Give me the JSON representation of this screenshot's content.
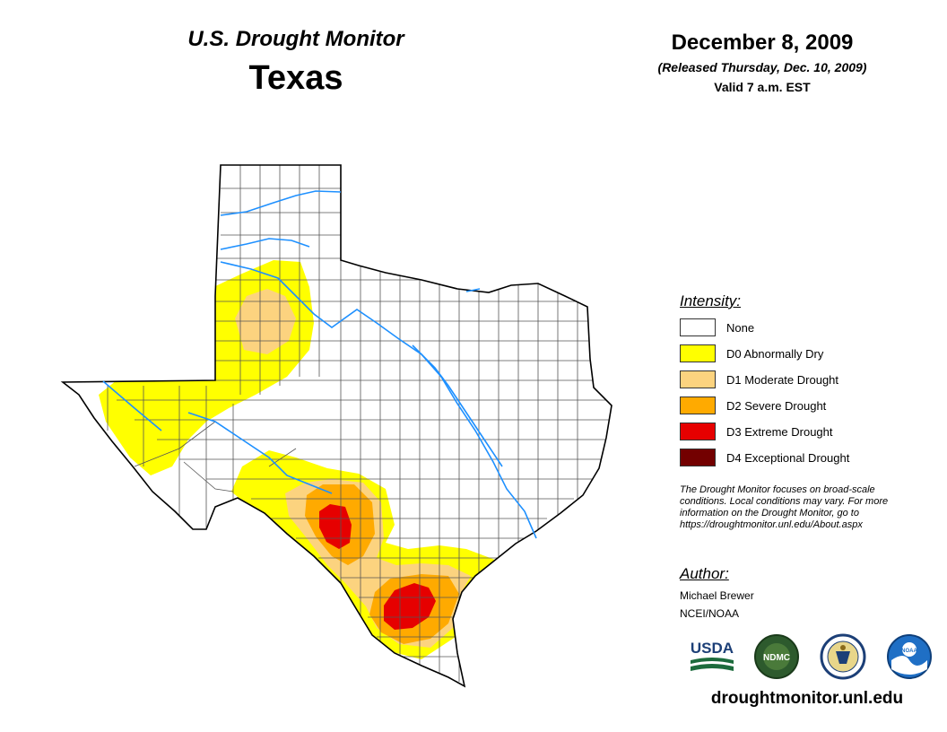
{
  "header": {
    "monitor_title": "U.S. Drought Monitor",
    "state": "Texas",
    "date": "December 8, 2009",
    "released": "(Released Thursday, Dec. 10, 2009)",
    "valid": "Valid 7 a.m. EST"
  },
  "legend": {
    "title": "Intensity:",
    "items": [
      {
        "label": "None",
        "color": "#ffffff"
      },
      {
        "label": "D0 Abnormally Dry",
        "color": "#ffff00"
      },
      {
        "label": "D1 Moderate Drought",
        "color": "#fcd37f"
      },
      {
        "label": "D2 Severe Drought",
        "color": "#ffaa00"
      },
      {
        "label": "D3 Extreme Drought",
        "color": "#e60000"
      },
      {
        "label": "D4 Exceptional Drought",
        "color": "#730000"
      }
    ]
  },
  "disclaimer": {
    "line1": "The Drought Monitor focuses on broad-scale",
    "line2": "conditions. Local conditions may vary. For more",
    "line3": "information on the Drought Monitor, go to",
    "line4": "https://droughtmonitor.unl.edu/About.aspx"
  },
  "author": {
    "title": "Author:",
    "name": "Michael Brewer",
    "org": "NCEI/NOAA"
  },
  "logos": {
    "usda": "USDA",
    "ndmc": "NDMC",
    "noaa": "NOAA"
  },
  "footer": {
    "url": "droughtmonitor.unl.edu"
  },
  "colors": {
    "river": "#1e90ff",
    "border": "#000000",
    "county_line": "#444444"
  }
}
